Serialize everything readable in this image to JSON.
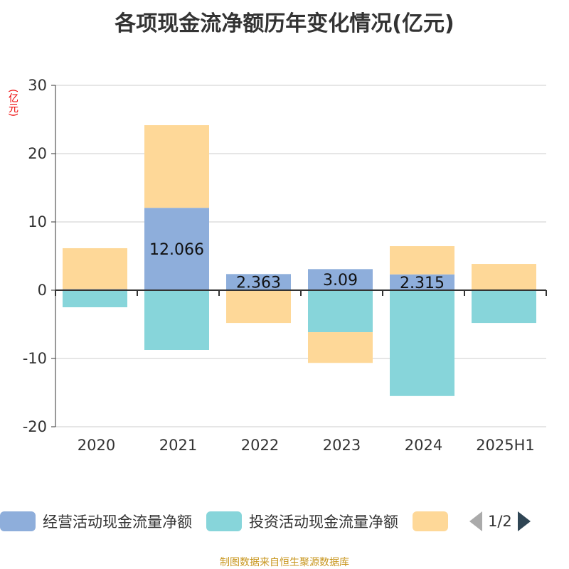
{
  "title": "各项现金流净额历年变化情况(亿元)",
  "unit": "(亿元)",
  "source": "制图数据来自恒生聚源数据库",
  "colors": {
    "operating": "#8eaedb",
    "investing": "#87d5da",
    "financing": "#fed898"
  },
  "legend": {
    "items": [
      "经营活动现金流量净额",
      "投资活动现金流量净额",
      ""
    ],
    "page": "1/2"
  },
  "chart_data": {
    "type": "bar",
    "stacked": true,
    "title": "各项现金流净额历年变化情况(亿元)",
    "ylabel": "(亿元)",
    "ylim": [
      -20,
      30
    ],
    "yticks": [
      -20,
      -10,
      0,
      10,
      20,
      30
    ],
    "grid": true,
    "categories": [
      "2020",
      "2021",
      "2022",
      "2023",
      "2024",
      "2025H1"
    ],
    "series": [
      {
        "name": "经营活动现金流量净额",
        "values": [
          0.15,
          12.066,
          2.363,
          3.09,
          2.315,
          0.1
        ],
        "labels": [
          "",
          "12.066",
          "2.363",
          "3.09",
          "2.315",
          ""
        ]
      },
      {
        "name": "投资活动现金流量净额",
        "values": [
          -2.5,
          -8.75,
          0,
          -6.15,
          -15.5,
          -4.8
        ]
      },
      {
        "name": "",
        "values": [
          6.0,
          12.1,
          -4.8,
          -4.5,
          4.14,
          3.75
        ]
      }
    ],
    "legend_position": "bottom"
  }
}
